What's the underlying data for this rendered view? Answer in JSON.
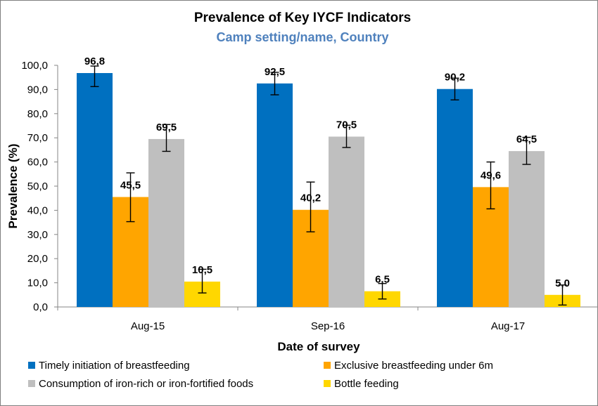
{
  "chart_data": {
    "type": "bar",
    "title": "Prevalence of Key IYCF Indicators",
    "subtitle": "Camp setting/name, Country",
    "xlabel": "Date of survey",
    "ylabel": "Prevalence (%)",
    "ylim": [
      0,
      100
    ],
    "yticks": [
      "0,0",
      "10,0",
      "20,0",
      "30,0",
      "40,0",
      "50,0",
      "60,0",
      "70,0",
      "80,0",
      "90,0",
      "100,0"
    ],
    "categories": [
      "Aug-15",
      "Sep-16",
      "Aug-17"
    ],
    "legend_position": "bottom",
    "grid": false,
    "series": [
      {
        "name": "Timely initiation of breastfeeding",
        "color": "#0070c0",
        "values": [
          96.8,
          92.5,
          90.2
        ],
        "labels": [
          "96,8",
          "92,5",
          "90,2"
        ],
        "error_low": [
          91.2,
          87.8,
          85.7
        ],
        "error_high": [
          99.7,
          97.1,
          94.7
        ]
      },
      {
        "name": "Exclusive breastfeeding under 6m",
        "color": "#ffa500",
        "values": [
          45.5,
          40.2,
          49.6
        ],
        "labels": [
          "45,5",
          "40,2",
          "49,6"
        ],
        "error_low": [
          35.3,
          31.1,
          40.6
        ],
        "error_high": [
          55.5,
          51.7,
          60.0
        ]
      },
      {
        "name": "Consumption of iron-rich or iron-fortified foods",
        "color": "#bfbfbf",
        "values": [
          69.5,
          70.5,
          64.5
        ],
        "labels": [
          "69,5",
          "70,5",
          "64,5"
        ],
        "error_low": [
          64.4,
          66.0,
          59.0
        ],
        "error_high": [
          75.5,
          75.2,
          70.2
        ]
      },
      {
        "name": "Bottle feeding",
        "color": "#ffd700",
        "values": [
          10.5,
          6.5,
          5.0
        ],
        "labels": [
          "10,5",
          "6,5",
          "5,0"
        ],
        "error_low": [
          5.8,
          3.3,
          0.8
        ],
        "error_high": [
          15.6,
          9.7,
          9.1
        ]
      }
    ]
  }
}
